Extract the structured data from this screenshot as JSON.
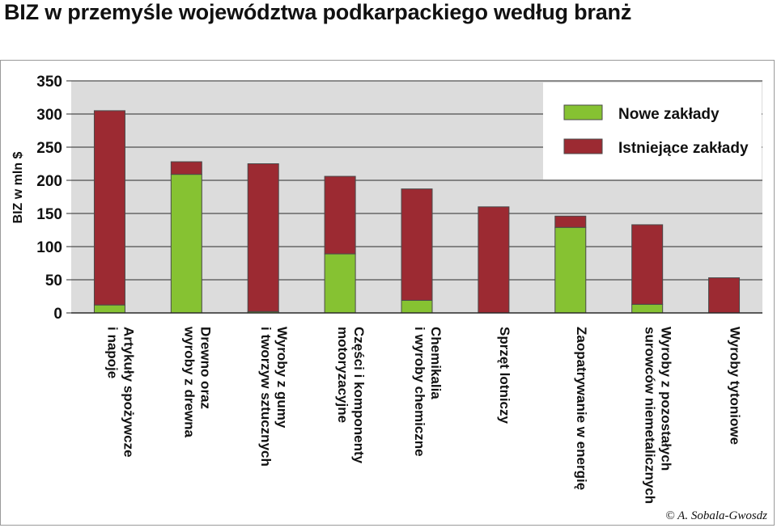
{
  "title": "BIZ w przemyśle województwa podkarpackiego według branż",
  "credit": "© A. Sobala-Gwosdz",
  "chart_data": {
    "type": "bar",
    "stacked": true,
    "title": "BIZ w przemyśle województwa podkarpackiego według branż",
    "ylabel": "BIZ w mln $",
    "xlabel": "",
    "ylim": [
      0,
      350
    ],
    "yticks": [
      0,
      50,
      100,
      150,
      200,
      250,
      300,
      350
    ],
    "grid": true,
    "legend_position": "top-right",
    "categories": [
      [
        "Artykuły spożywcze",
        "i napoje"
      ],
      [
        "Drewno oraz",
        "wyroby z drewna"
      ],
      [
        "Wyroby z gumy",
        "i tworzyw sztucznych"
      ],
      [
        "Części i komponenty",
        "motoryzacyjne"
      ],
      [
        "Chemikalia",
        "i wyroby chemiczne"
      ],
      [
        "Sprzęt lotniczy"
      ],
      [
        "Zaopatrywanie w energię"
      ],
      [
        "Wyroby z pozostałych",
        "surowców niemetalicznych"
      ],
      [
        "Wyroby tytoniowe"
      ]
    ],
    "series": [
      {
        "name": "Nowe zakłady",
        "color": "#86c232",
        "values": [
          12,
          209,
          2,
          89,
          19,
          0,
          129,
          13,
          0
        ]
      },
      {
        "name": "Istniejące zakłady",
        "color": "#9c2a32",
        "values": [
          293,
          19,
          223,
          117,
          168,
          160,
          17,
          120,
          53
        ]
      }
    ]
  }
}
